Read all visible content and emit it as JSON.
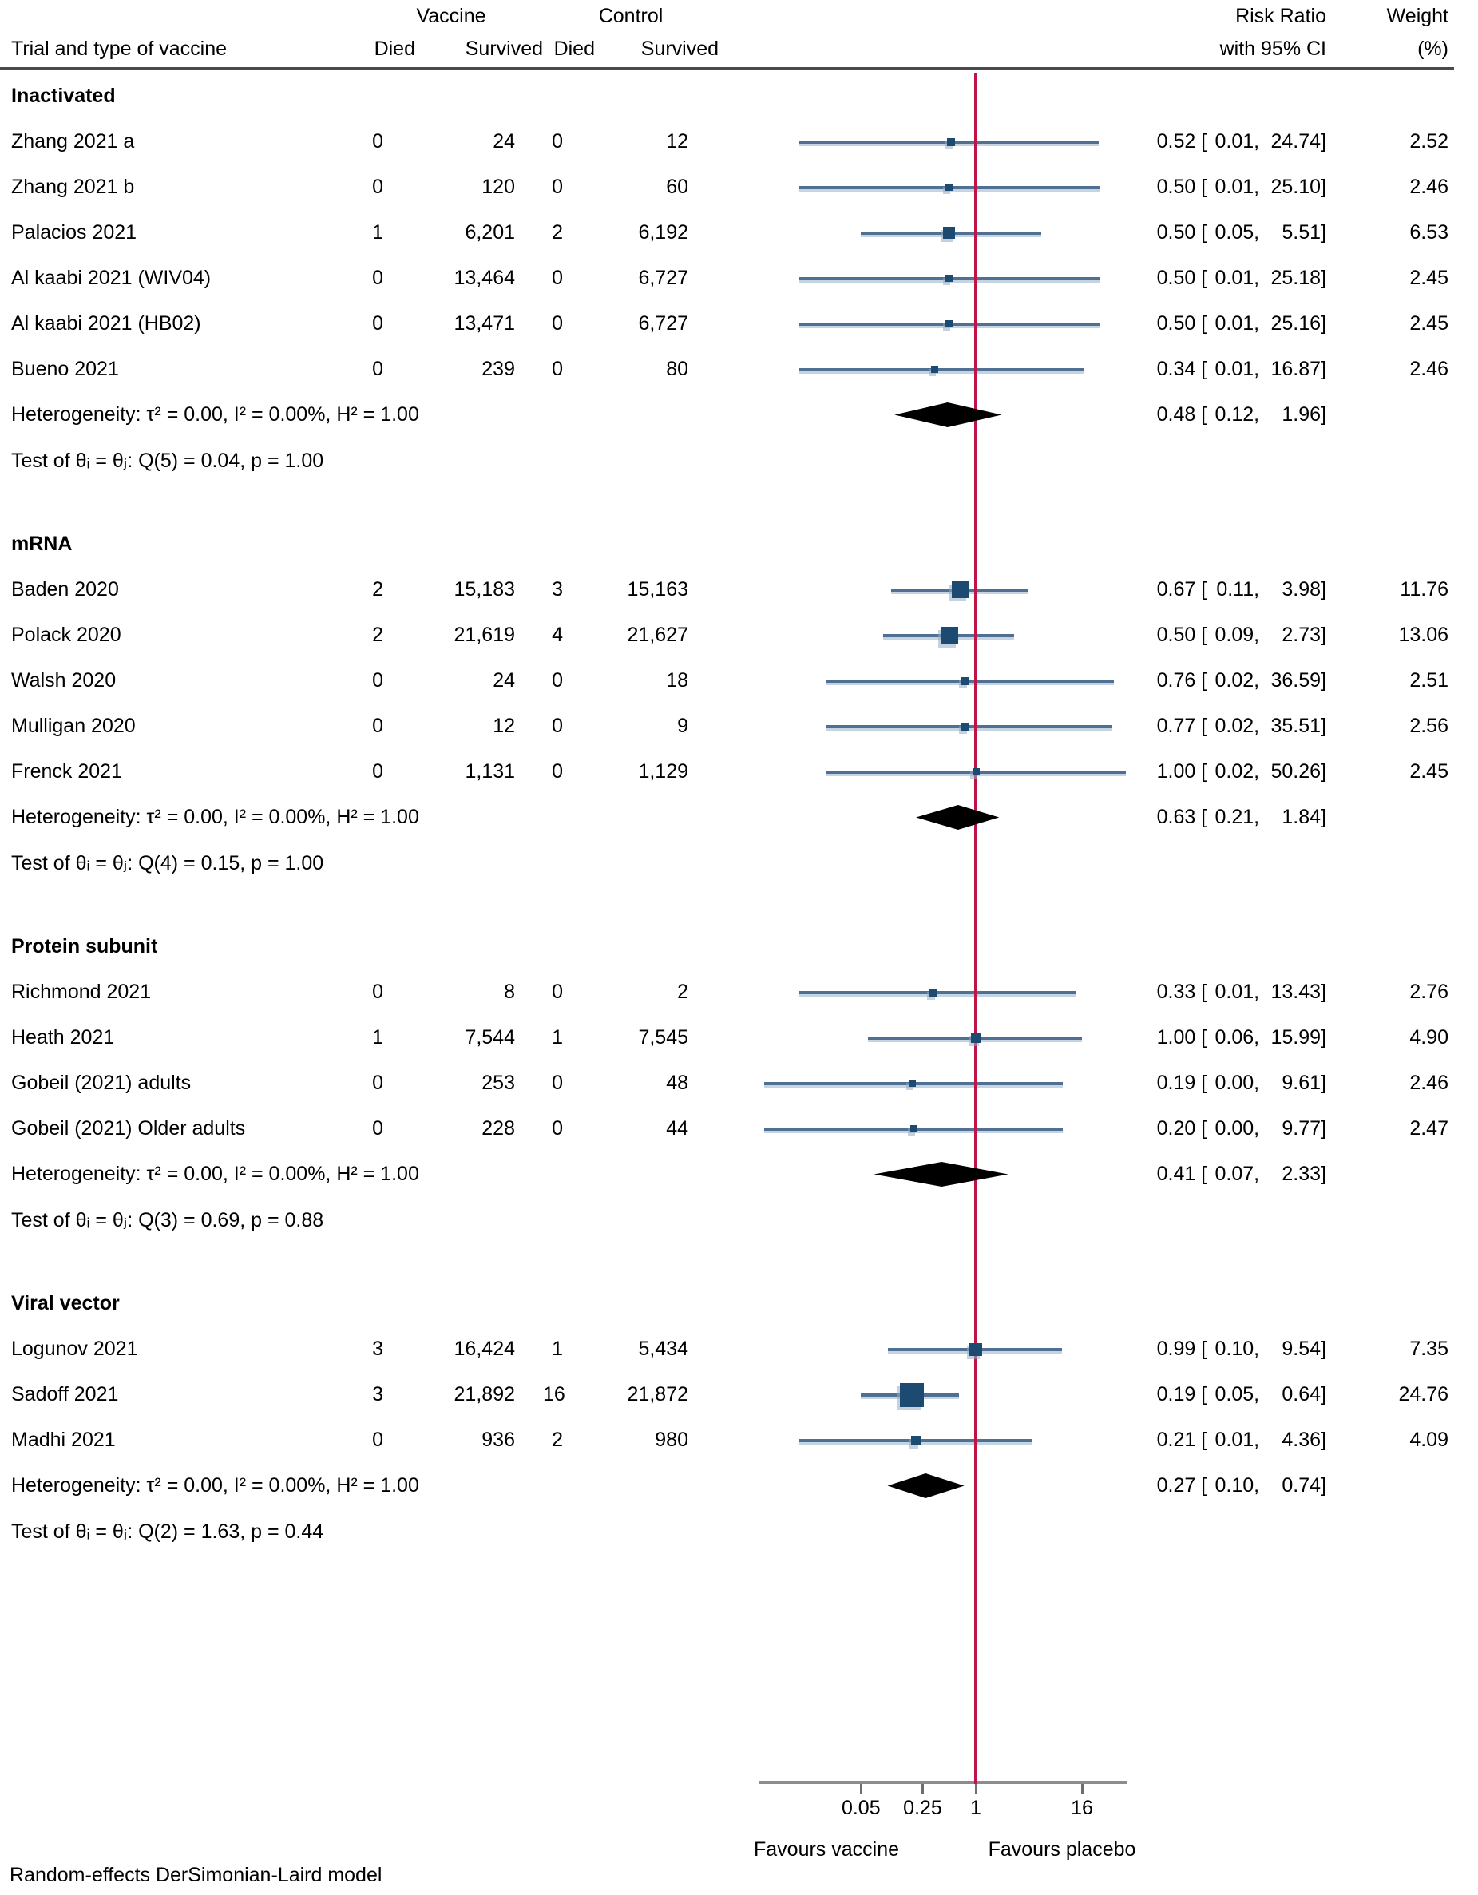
{
  "header": {
    "col_trial": "Trial and type of vaccine",
    "group_vaccine": "Vaccine",
    "group_control": "Control",
    "died": "Died",
    "survived": "Survived",
    "risk_ratio_line1": "Risk Ratio",
    "risk_ratio_line2": "with 95% CI",
    "weight_line1": "Weight",
    "weight_line2": "(%)"
  },
  "colors": {
    "ref_line": "#c01446",
    "ci_line": "#4f6f93",
    "marker": "#1d4a70",
    "diamond": "#000000",
    "axis": "#8c8c8c",
    "rule": "#4a4a4a",
    "text": "#000000"
  },
  "axis": {
    "ticks": [
      {
        "label": "0.05",
        "value": 0.05
      },
      {
        "label": "0.25",
        "value": 0.25
      },
      {
        "label": "1",
        "value": 1
      },
      {
        "label": "16",
        "value": 16
      }
    ],
    "favours_left": "Favours vaccine",
    "favours_right": "Favours placebo"
  },
  "footer": "Random-effects DerSimonian-Laird model",
  "chart_data": {
    "type": "forest",
    "x_scale": "log2",
    "ref_line": 1,
    "x_ticks": [
      0.05,
      0.25,
      1,
      16
    ],
    "columns": [
      "Trial and type of vaccine",
      "Vaccine Died",
      "Vaccine Survived",
      "Control Died",
      "Control Survived",
      "Risk Ratio with 95% CI",
      "Weight (%)"
    ],
    "groups": [
      {
        "name": "Inactivated",
        "studies": [
          {
            "label": "Zhang 2021 a",
            "vaccine_died": "0",
            "vaccine_survived": "24",
            "control_died": "0",
            "control_survived": "12",
            "rr": 0.52,
            "lo": 0.01,
            "hi": 24.74,
            "est_text": "0.52",
            "lo_text": "0.01",
            "hi_text": "24.74",
            "weight": "2.52"
          },
          {
            "label": "Zhang 2021 b",
            "vaccine_died": "0",
            "vaccine_survived": "120",
            "control_died": "0",
            "control_survived": "60",
            "rr": 0.5,
            "lo": 0.01,
            "hi": 25.1,
            "est_text": "0.50",
            "lo_text": "0.01",
            "hi_text": "25.10",
            "weight": "2.46"
          },
          {
            "label": "Palacios 2021",
            "vaccine_died": "1",
            "vaccine_survived": "6,201",
            "control_died": "2",
            "control_survived": "6,192",
            "rr": 0.5,
            "lo": 0.05,
            "hi": 5.51,
            "est_text": "0.50",
            "lo_text": "0.05",
            "hi_text": "5.51",
            "weight": "6.53"
          },
          {
            "label": "Al kaabi 2021 (WIV04)",
            "vaccine_died": "0",
            "vaccine_survived": "13,464",
            "control_died": "0",
            "control_survived": "6,727",
            "rr": 0.5,
            "lo": 0.01,
            "hi": 25.18,
            "est_text": "0.50",
            "lo_text": "0.01",
            "hi_text": "25.18",
            "weight": "2.45"
          },
          {
            "label": "Al kaabi 2021 (HB02)",
            "vaccine_died": "0",
            "vaccine_survived": "13,471",
            "control_died": "0",
            "control_survived": "6,727",
            "rr": 0.5,
            "lo": 0.01,
            "hi": 25.16,
            "est_text": "0.50",
            "lo_text": "0.01",
            "hi_text": "25.16",
            "weight": "2.45"
          },
          {
            "label": "Bueno 2021",
            "vaccine_died": "0",
            "vaccine_survived": "239",
            "control_died": "0",
            "control_survived": "80",
            "rr": 0.34,
            "lo": 0.01,
            "hi": 16.87,
            "est_text": "0.34",
            "lo_text": "0.01",
            "hi_text": "16.87",
            "weight": "2.46"
          }
        ],
        "heterogeneity": "Heterogeneity: τ² = 0.00, I² = 0.00%, H² = 1.00",
        "test": "Test of θᵢ = θⱼ: Q(5) = 0.04, p = 1.00",
        "overall": {
          "est": 0.48,
          "lo": 0.12,
          "hi": 1.96,
          "est_text": "0.48",
          "lo_text": "0.12",
          "hi_text": "1.96"
        }
      },
      {
        "name": "mRNA",
        "studies": [
          {
            "label": "Baden 2020",
            "vaccine_died": "2",
            "vaccine_survived": "15,183",
            "control_died": "3",
            "control_survived": "15,163",
            "rr": 0.67,
            "lo": 0.11,
            "hi": 3.98,
            "est_text": "0.67",
            "lo_text": "0.11",
            "hi_text": "3.98",
            "weight": "11.76"
          },
          {
            "label": "Polack 2020",
            "vaccine_died": "2",
            "vaccine_survived": "21,619",
            "control_died": "4",
            "control_survived": "21,627",
            "rr": 0.5,
            "lo": 0.09,
            "hi": 2.73,
            "est_text": "0.50",
            "lo_text": "0.09",
            "hi_text": "2.73",
            "weight": "13.06"
          },
          {
            "label": "Walsh 2020",
            "vaccine_died": "0",
            "vaccine_survived": "24",
            "control_died": "0",
            "control_survived": "18",
            "rr": 0.76,
            "lo": 0.02,
            "hi": 36.59,
            "est_text": "0.76",
            "lo_text": "0.02",
            "hi_text": "36.59",
            "weight": "2.51"
          },
          {
            "label": "Mulligan 2020",
            "vaccine_died": "0",
            "vaccine_survived": "12",
            "control_died": "0",
            "control_survived": "9",
            "rr": 0.77,
            "lo": 0.02,
            "hi": 35.51,
            "est_text": "0.77",
            "lo_text": "0.02",
            "hi_text": "35.51",
            "weight": "2.56"
          },
          {
            "label": "Frenck 2021",
            "vaccine_died": "0",
            "vaccine_survived": "1,131",
            "control_died": "0",
            "control_survived": "1,129",
            "rr": 1.0,
            "lo": 0.02,
            "hi": 50.26,
            "est_text": "1.00",
            "lo_text": "0.02",
            "hi_text": "50.26",
            "weight": "2.45"
          }
        ],
        "heterogeneity": "Heterogeneity: τ² = 0.00, I² = 0.00%, H² = 1.00",
        "test": "Test of θᵢ = θⱼ: Q(4) = 0.15, p = 1.00",
        "overall": {
          "est": 0.63,
          "lo": 0.21,
          "hi": 1.84,
          "est_text": "0.63",
          "lo_text": "0.21",
          "hi_text": "1.84"
        }
      },
      {
        "name": "Protein subunit",
        "studies": [
          {
            "label": "Richmond 2021",
            "vaccine_died": "0",
            "vaccine_survived": "8",
            "control_died": "0",
            "control_survived": "2",
            "rr": 0.33,
            "lo": 0.01,
            "hi": 13.43,
            "est_text": "0.33",
            "lo_text": "0.01",
            "hi_text": "13.43",
            "weight": "2.76"
          },
          {
            "label": "Heath 2021",
            "vaccine_died": "1",
            "vaccine_survived": "7,544",
            "control_died": "1",
            "control_survived": "7,545",
            "rr": 1.0,
            "lo": 0.06,
            "hi": 15.99,
            "est_text": "1.00",
            "lo_text": "0.06",
            "hi_text": "15.99",
            "weight": "4.90"
          },
          {
            "label": "Gobeil (2021) adults",
            "vaccine_died": "0",
            "vaccine_survived": "253",
            "control_died": "0",
            "control_survived": "48",
            "rr": 0.19,
            "lo": 0.004,
            "hi": 9.61,
            "est_text": "0.19",
            "lo_text": "0.00",
            "hi_text": "9.61",
            "weight": "2.46"
          },
          {
            "label": "Gobeil (2021) Older adults",
            "vaccine_died": "0",
            "vaccine_survived": "228",
            "control_died": "0",
            "control_survived": "44",
            "rr": 0.2,
            "lo": 0.004,
            "hi": 9.77,
            "est_text": "0.20",
            "lo_text": "0.00",
            "hi_text": "9.77",
            "weight": "2.47"
          }
        ],
        "heterogeneity": "Heterogeneity: τ² = 0.00, I² = 0.00%, H² = 1.00",
        "test": "Test of θᵢ = θⱼ: Q(3) = 0.69, p = 0.88",
        "overall": {
          "est": 0.41,
          "lo": 0.07,
          "hi": 2.33,
          "est_text": "0.41",
          "lo_text": "0.07",
          "hi_text": "2.33"
        }
      },
      {
        "name": "Viral vector",
        "studies": [
          {
            "label": "Logunov 2021",
            "vaccine_died": "3",
            "vaccine_survived": "16,424",
            "control_died": "1",
            "control_survived": "5,434",
            "rr": 0.99,
            "lo": 0.1,
            "hi": 9.54,
            "est_text": "0.99",
            "lo_text": "0.10",
            "hi_text": "9.54",
            "weight": "7.35"
          },
          {
            "label": "Sadoff 2021",
            "vaccine_died": "3",
            "vaccine_survived": "21,892",
            "control_died": "16",
            "control_survived": "21,872",
            "rr": 0.19,
            "lo": 0.05,
            "hi": 0.64,
            "est_text": "0.19",
            "lo_text": "0.05",
            "hi_text": "0.64",
            "weight": "24.76"
          },
          {
            "label": "Madhi 2021",
            "vaccine_died": "0",
            "vaccine_survived": "936",
            "control_died": "2",
            "control_survived": "980",
            "rr": 0.21,
            "lo": 0.01,
            "hi": 4.36,
            "est_text": "0.21",
            "lo_text": "0.01",
            "hi_text": "4.36",
            "weight": "4.09"
          }
        ],
        "heterogeneity": "Heterogeneity: τ² = 0.00, I² = 0.00%, H² = 1.00",
        "test": "Test of θᵢ = θⱼ: Q(2) = 1.63, p = 0.44",
        "overall": {
          "est": 0.27,
          "lo": 0.1,
          "hi": 0.74,
          "est_text": "0.27",
          "lo_text": "0.10",
          "hi_text": "0.74"
        }
      }
    ]
  }
}
